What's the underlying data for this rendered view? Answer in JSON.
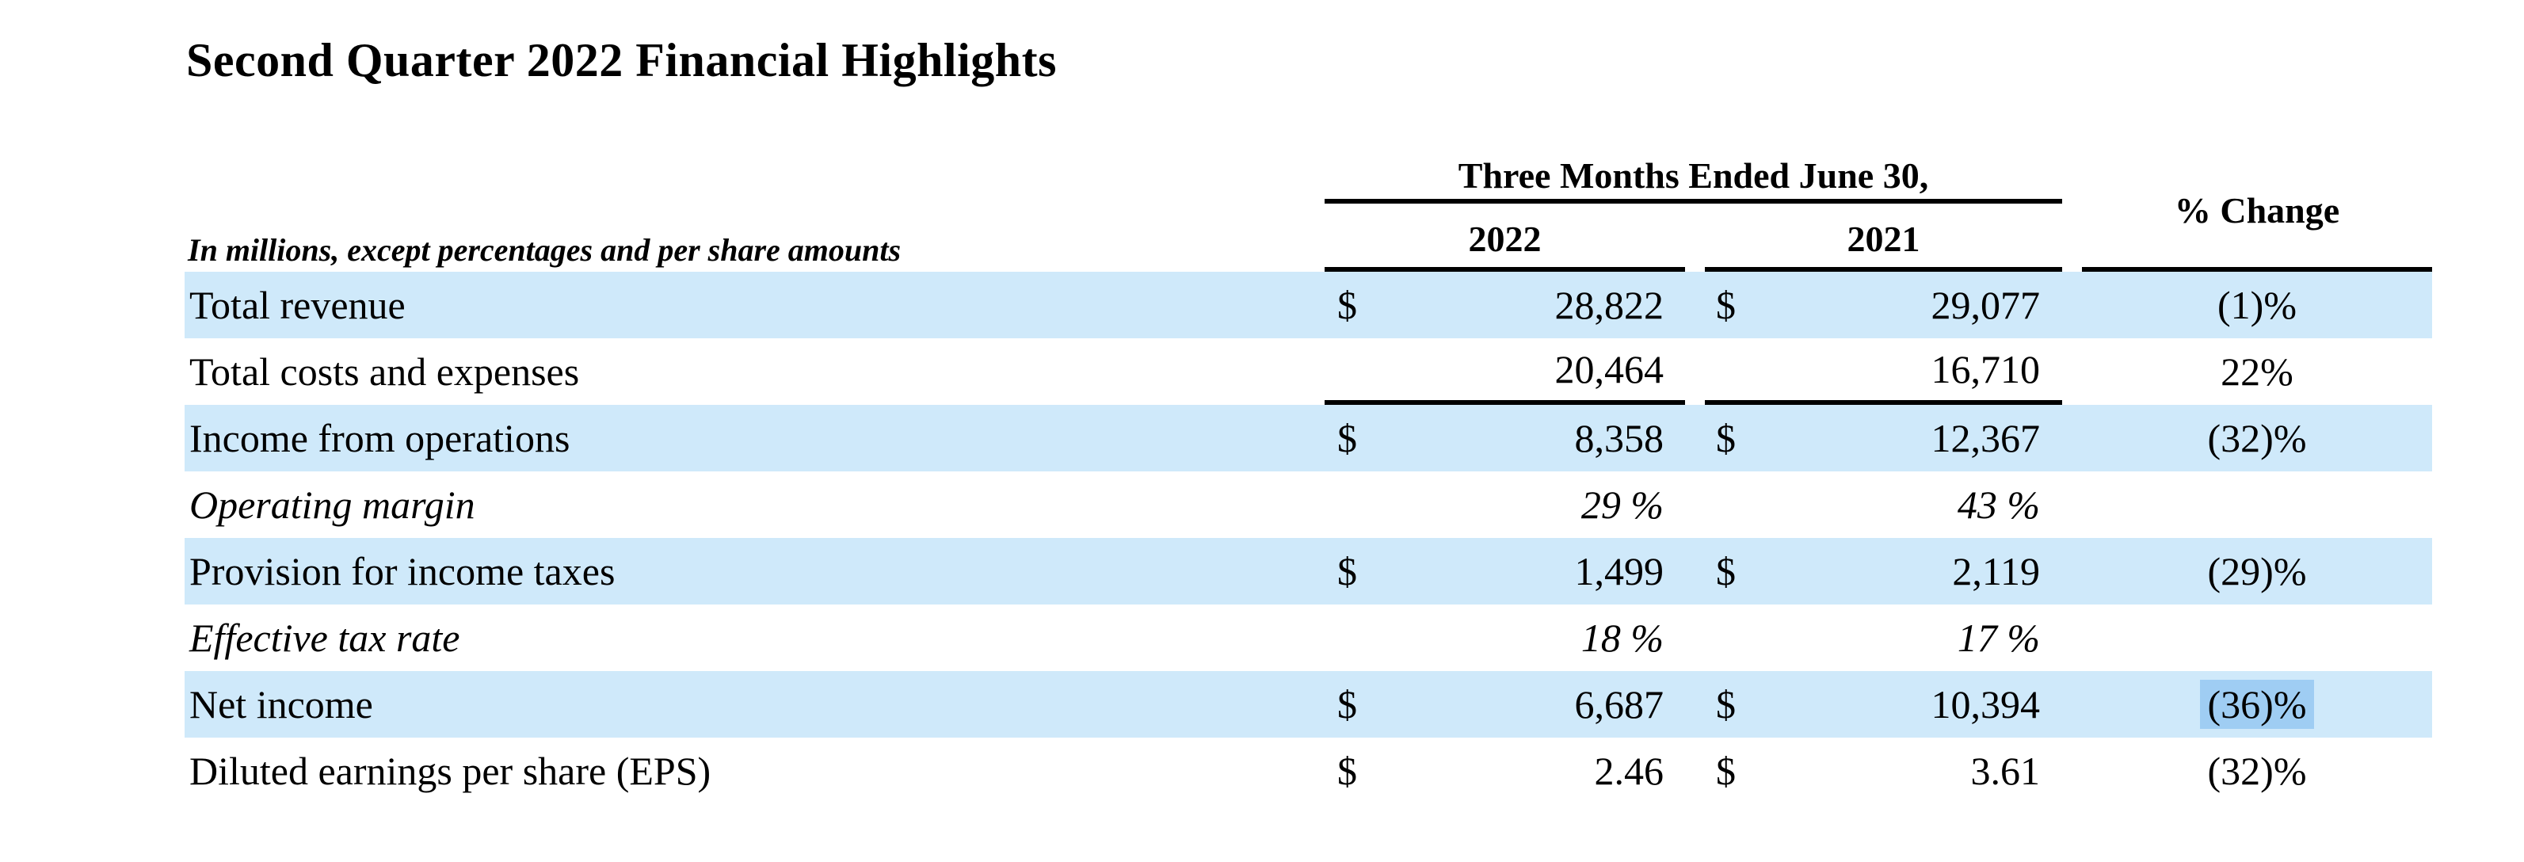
{
  "page": {
    "title": "Second Quarter 2022 Financial Highlights"
  },
  "table": {
    "note": "In millions, except percentages and per share amounts",
    "period_header": "Three Months Ended June 30,",
    "col_2022": "2022",
    "col_2021": "2021",
    "col_change": "% Change",
    "rows": [
      {
        "label": "Total revenue",
        "cur1": "$",
        "v1": "28,822",
        "cur2": "$",
        "v2": "29,077",
        "change": "(1)%"
      },
      {
        "label": "Total costs and expenses",
        "cur1": "",
        "v1": "20,464",
        "cur2": "",
        "v2": "16,710",
        "change": "22%"
      },
      {
        "label": "Income from operations",
        "cur1": "$",
        "v1": "8,358",
        "cur2": "$",
        "v2": "12,367",
        "change": "(32)%"
      },
      {
        "label": "Operating margin",
        "cur1": "",
        "v1": "29 %",
        "cur2": "",
        "v2": "43 %",
        "change": ""
      },
      {
        "label": "Provision for income taxes",
        "cur1": "$",
        "v1": "1,499",
        "cur2": "$",
        "v2": "2,119",
        "change": "(29)%"
      },
      {
        "label": "Effective tax rate",
        "cur1": "",
        "v1": "18 %",
        "cur2": "",
        "v2": "17 %",
        "change": ""
      },
      {
        "label": "Net income",
        "cur1": "$",
        "v1": "6,687",
        "cur2": "$",
        "v2": "10,394",
        "change": "(36)%"
      },
      {
        "label": "Diluted earnings per share (EPS)",
        "cur1": "$",
        "v1": "2.46",
        "cur2": "$",
        "v2": "3.61",
        "change": "(32)%"
      }
    ],
    "colors": {
      "row_stripe": "#cfe9fa",
      "text_selection": "#9fcdf3",
      "rule": "#000000"
    }
  }
}
